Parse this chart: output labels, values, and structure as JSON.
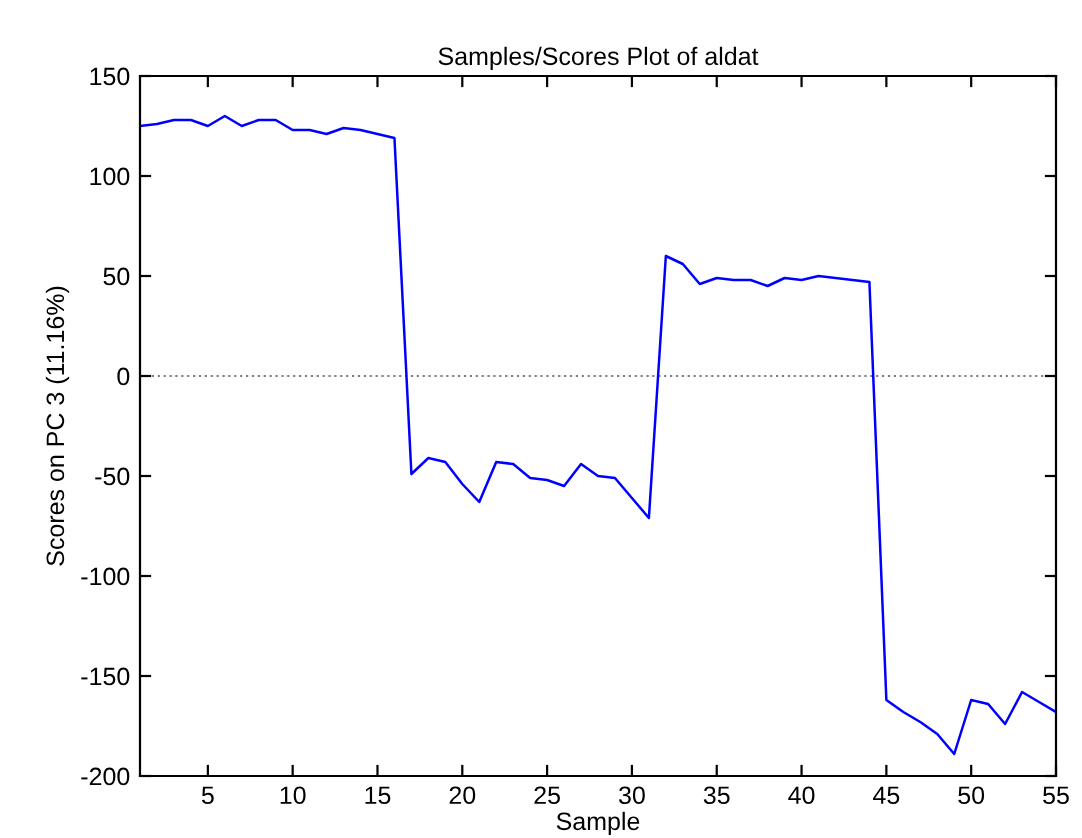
{
  "chart_data": {
    "type": "line",
    "title": "Samples/Scores Plot of aldat",
    "xlabel": "Sample",
    "ylabel": "Scores on PC 3 (11.16%)",
    "x": [
      1,
      2,
      3,
      4,
      5,
      6,
      7,
      8,
      9,
      10,
      11,
      12,
      13,
      14,
      15,
      16,
      17,
      18,
      19,
      20,
      21,
      22,
      23,
      24,
      25,
      26,
      27,
      28,
      29,
      30,
      31,
      32,
      33,
      34,
      35,
      36,
      37,
      38,
      39,
      40,
      41,
      42,
      43,
      44,
      45,
      46,
      47,
      48,
      49,
      50,
      51,
      52,
      53,
      54,
      55
    ],
    "series": [
      {
        "color": "#0000ff",
        "values": [
          125,
          126,
          128,
          128,
          125,
          130,
          125,
          128,
          128,
          123,
          123,
          121,
          124,
          123,
          121,
          119,
          -49,
          -41,
          -43,
          -54,
          -63,
          -43,
          -44,
          -51,
          -52,
          -55,
          -44,
          -50,
          -51,
          -61,
          -71,
          60,
          56,
          46,
          49,
          48,
          48,
          45,
          49,
          48,
          50,
          49,
          48,
          47,
          -162,
          -168,
          -173,
          -179,
          -189,
          -162,
          -164,
          -174,
          -158,
          -163,
          -168
        ]
      }
    ],
    "xlim": [
      1,
      55
    ],
    "xticks": [
      5,
      10,
      15,
      20,
      25,
      30,
      35,
      40,
      45,
      50,
      55
    ],
    "ylim": [
      -200,
      150
    ],
    "yticks": [
      -200,
      -150,
      -100,
      -50,
      0,
      50,
      100,
      150
    ],
    "ref_lines": [
      {
        "axis": "y",
        "value": 0,
        "color": "#808080",
        "line_style": "dotted"
      }
    ],
    "grid": false,
    "legend": false,
    "marker": "none",
    "line_style": "solid"
  }
}
